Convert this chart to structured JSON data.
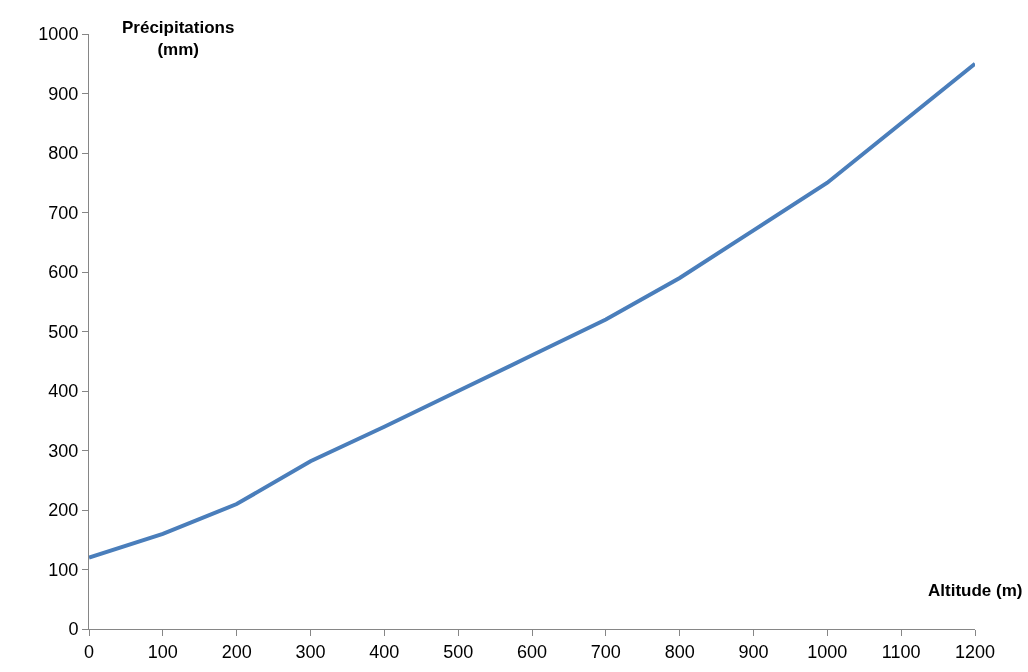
{
  "chart_data": {
    "type": "line",
    "xlabel": "Altitude (m)",
    "ylabel": "Précipitations (mm)",
    "x": [
      0,
      100,
      200,
      300,
      400,
      500,
      600,
      700,
      800,
      900,
      1000,
      1100,
      1200
    ],
    "series": [
      {
        "color": "#4a7ebb",
        "values": [
          120,
          160,
          210,
          282,
          340,
          400,
          460,
          520,
          590,
          670,
          750,
          850,
          950
        ]
      }
    ],
    "xlim": [
      0,
      1200
    ],
    "xticks": [
      0,
      100,
      200,
      300,
      400,
      500,
      600,
      700,
      800,
      900,
      1000,
      1100,
      1200
    ],
    "ylim": [
      0,
      1000
    ],
    "yticks": [
      0,
      100,
      200,
      300,
      400,
      500,
      600,
      700,
      800,
      900,
      1000
    ],
    "marker": "none",
    "line_style": "solid"
  }
}
